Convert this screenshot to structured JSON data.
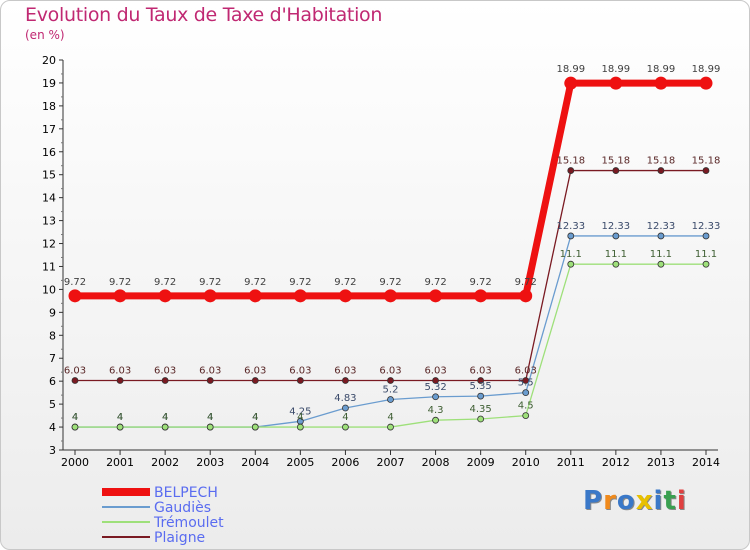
{
  "title": "Evolution du Taux de Taxe d'Habitation",
  "subtitle": "(en %)",
  "logo": {
    "text": "Proxiti",
    "colors": [
      "#3a78c8",
      "#f08a1c",
      "#3a78c8",
      "#e8c000",
      "#3a78c8",
      "#3aa050",
      "#e04040"
    ]
  },
  "chart_data": {
    "type": "line",
    "x": [
      2000,
      2001,
      2002,
      2003,
      2004,
      2005,
      2006,
      2007,
      2008,
      2009,
      2010,
      2011,
      2012,
      2013,
      2014
    ],
    "ylim": [
      3,
      20
    ],
    "yticks": [
      3,
      4,
      5,
      6,
      7,
      8,
      9,
      10,
      11,
      12,
      13,
      14,
      15,
      16,
      17,
      18,
      19,
      20
    ],
    "grid": false,
    "legend_position": "bottom-left",
    "series": [
      {
        "name": "Plaigne",
        "color": "#7a1a22",
        "width": 1.3,
        "marker_r": 3,
        "label_color": "#5a2828",
        "values": [
          6.03,
          6.03,
          6.03,
          6.03,
          6.03,
          6.03,
          6.03,
          6.03,
          6.03,
          6.03,
          6.03,
          15.18,
          15.18,
          15.18,
          15.18
        ],
        "labels": [
          "6.03",
          "6.03",
          "6.03",
          "6.03",
          "6.03",
          "6.03",
          "6.03",
          "6.03",
          "6.03",
          "6.03",
          "6.03",
          "15.18",
          "15.18",
          "15.18",
          "15.18"
        ]
      },
      {
        "name": "Gaudiès",
        "color": "#6a9ccf",
        "width": 1.3,
        "marker_r": 3,
        "label_color": "#3a4a6a",
        "values": [
          4,
          4,
          4,
          4,
          4,
          4.25,
          4.83,
          5.2,
          5.32,
          5.35,
          5.5,
          12.33,
          12.33,
          12.33,
          12.33
        ],
        "labels": [
          "4",
          "4",
          "4",
          "4",
          "4",
          "4.25",
          "4.83",
          "5.2",
          "5.32",
          "5.35",
          "5.5",
          "12.33",
          "12.33",
          "12.33",
          "12.33"
        ]
      },
      {
        "name": "Trémoulet",
        "color": "#9ee07a",
        "width": 1.3,
        "marker_r": 3,
        "label_color": "#3e5e32",
        "values": [
          4,
          4,
          4,
          4,
          4,
          4,
          4,
          4,
          4.3,
          4.35,
          4.5,
          11.1,
          11.1,
          11.1,
          11.1
        ],
        "labels": [
          "4",
          "4",
          "4",
          "4",
          "4",
          "4",
          "4",
          "4",
          "4.3",
          "4.35",
          "4.5",
          "11.1",
          "11.1",
          "11.1",
          "11.1"
        ]
      },
      {
        "name": "BELPECH",
        "color": "#ee1111",
        "width": 7,
        "marker_r": 6.5,
        "label_color": "#404040",
        "values": [
          9.72,
          9.72,
          9.72,
          9.72,
          9.72,
          9.72,
          9.72,
          9.72,
          9.72,
          9.72,
          9.72,
          18.99,
          18.99,
          18.99,
          18.99
        ],
        "labels": [
          "9.72",
          "9.72",
          "9.72",
          "9.72",
          "9.72",
          "9.72",
          "9.72",
          "9.72",
          "9.72",
          "9.72",
          "9.72",
          "18.99",
          "18.99",
          "18.99",
          "18.99"
        ]
      }
    ],
    "legend": [
      "BELPECH",
      "Gaudiès",
      "Trémoulet",
      "Plaigne"
    ]
  }
}
